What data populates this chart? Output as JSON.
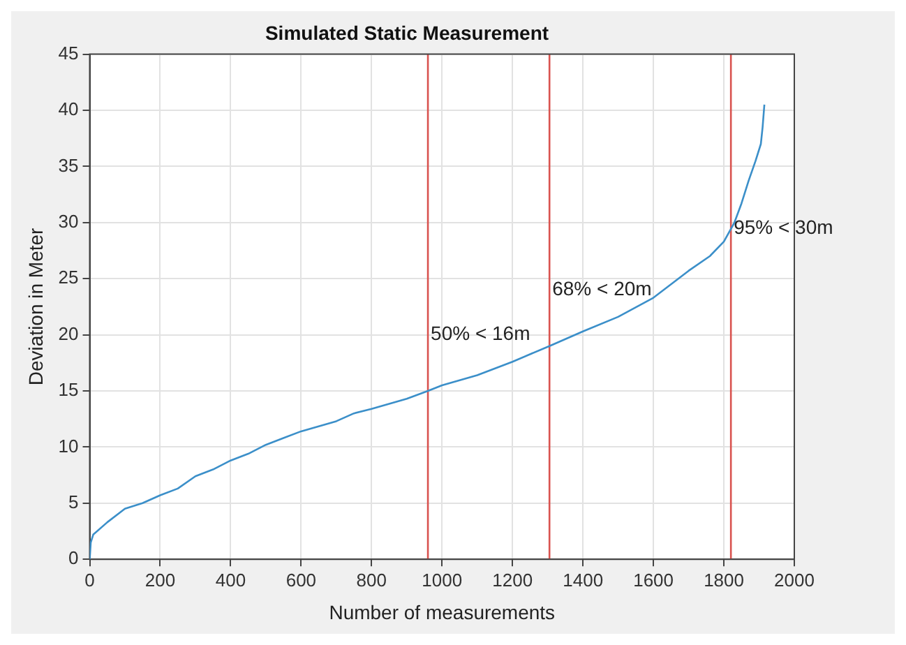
{
  "chart_data": {
    "type": "line",
    "title": "Simulated Static Measurement",
    "xlabel": "Number of measurements",
    "ylabel": "Deviation in Meter",
    "xlim": [
      0,
      2000
    ],
    "xticks": [
      0,
      200,
      400,
      600,
      800,
      1000,
      1200,
      1400,
      1600,
      1800,
      2000
    ],
    "ylim": [
      0,
      45
    ],
    "yticks": [
      0,
      5,
      10,
      15,
      20,
      25,
      30,
      35,
      40,
      45
    ],
    "grid": true,
    "legend": false,
    "marker": "none",
    "line_style": "solid",
    "series": [
      {
        "color": "#3b8fc9",
        "x": [
          0,
          3,
          10,
          50,
          100,
          150,
          200,
          250,
          300,
          350,
          400,
          450,
          500,
          550,
          600,
          700,
          750,
          800,
          900,
          960,
          1000,
          1100,
          1200,
          1305,
          1400,
          1500,
          1600,
          1650,
          1700,
          1760,
          1800,
          1830,
          1850,
          1870,
          1890,
          1905,
          1910,
          1915
        ],
        "values": [
          0,
          1.5,
          2.2,
          3.3,
          4.5,
          5.0,
          5.7,
          6.3,
          7.4,
          8.0,
          8.8,
          9.4,
          10.2,
          10.8,
          11.4,
          12.3,
          13.0,
          13.4,
          14.3,
          15.0,
          15.5,
          16.4,
          17.6,
          19.0,
          20.3,
          21.6,
          23.3,
          24.5,
          25.7,
          27.0,
          28.3,
          30.0,
          31.7,
          33.7,
          35.5,
          37.0,
          38.5,
          40.5
        ]
      }
    ],
    "ref_lines": [
      {
        "axis": "x",
        "value": 960,
        "color": "#d9534f"
      },
      {
        "axis": "x",
        "value": 1305,
        "color": "#d9534f"
      },
      {
        "axis": "x",
        "value": 1820,
        "color": "#d9534f"
      }
    ],
    "annotations": [
      {
        "text": "50% < 16m",
        "x": 960,
        "y": 20
      },
      {
        "text": "68% < 20m",
        "x": 1305,
        "y": 24
      },
      {
        "text": "95% < 30m",
        "x": 1820,
        "y": 29.5
      }
    ]
  }
}
